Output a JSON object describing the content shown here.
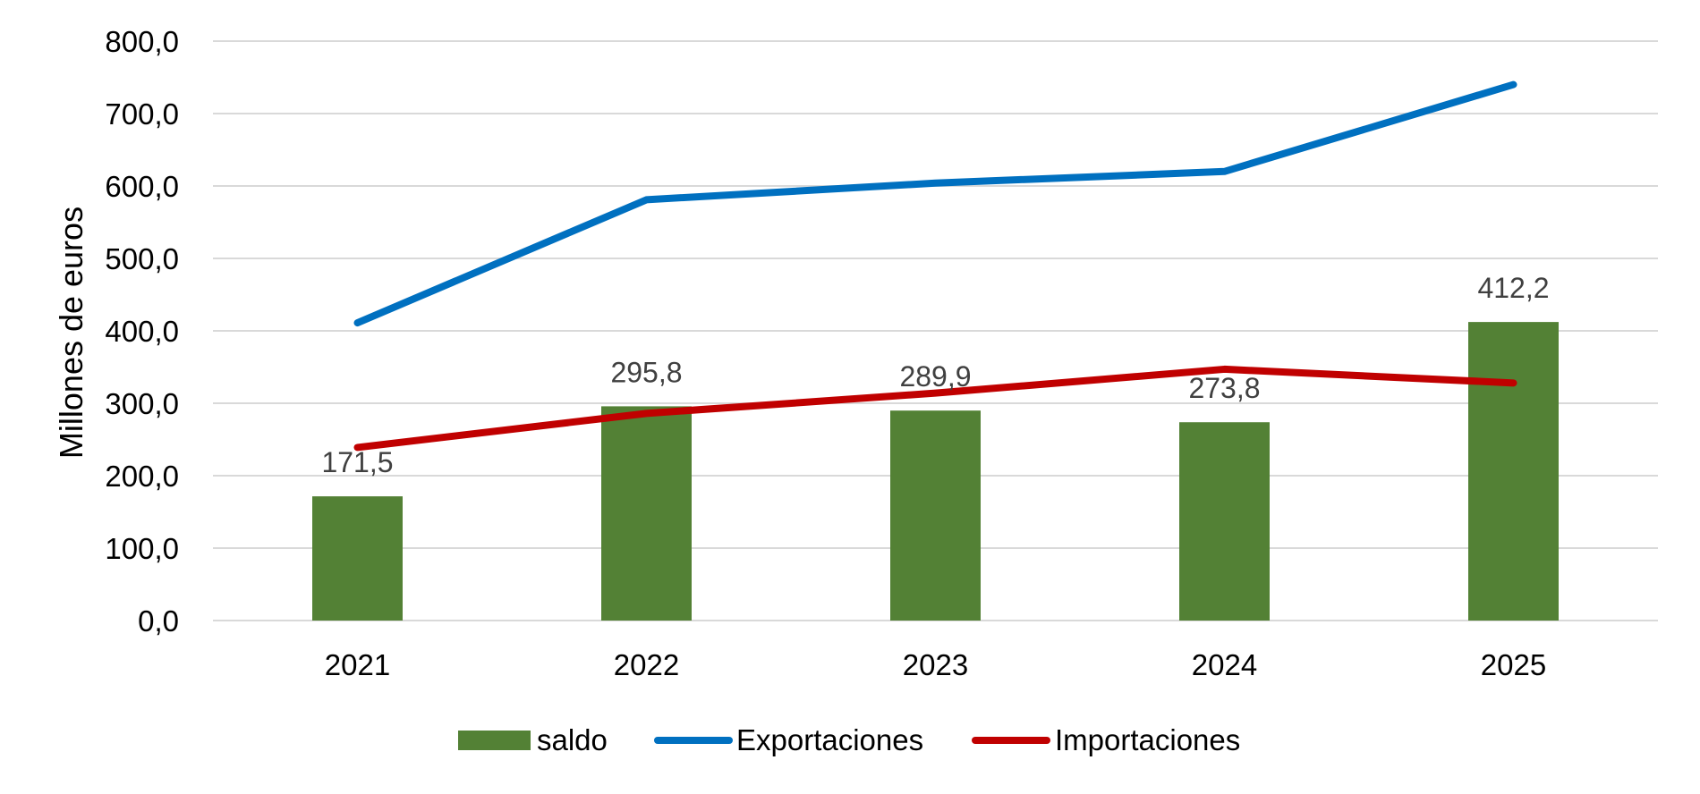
{
  "chart_data": {
    "type": "bar+line",
    "title": "",
    "xlabel": "",
    "ylabel": "Millones de euros",
    "ylim": [
      0,
      800
    ],
    "y_ticks": [
      "0,0",
      "100,0",
      "200,0",
      "300,0",
      "400,0",
      "500,0",
      "600,0",
      "700,0",
      "800,0"
    ],
    "categories": [
      "2021",
      "2022",
      "2023",
      "2024",
      "2025"
    ],
    "grid": true,
    "legend_position": "bottom",
    "series": [
      {
        "name": "saldo",
        "kind": "bar",
        "color": "#538135",
        "values": [
          171.5,
          295.8,
          289.9,
          273.8,
          412.2
        ],
        "labels": [
          "171,5",
          "295,8",
          "289,9",
          "273,8",
          "412,2"
        ]
      },
      {
        "name": "Exportaciones",
        "kind": "line",
        "color": "#0070c0",
        "values": [
          411,
          581,
          604,
          620,
          740
        ]
      },
      {
        "name": "Importaciones",
        "kind": "line",
        "color": "#c00000",
        "values": [
          239,
          286,
          314,
          347,
          328
        ]
      }
    ]
  }
}
